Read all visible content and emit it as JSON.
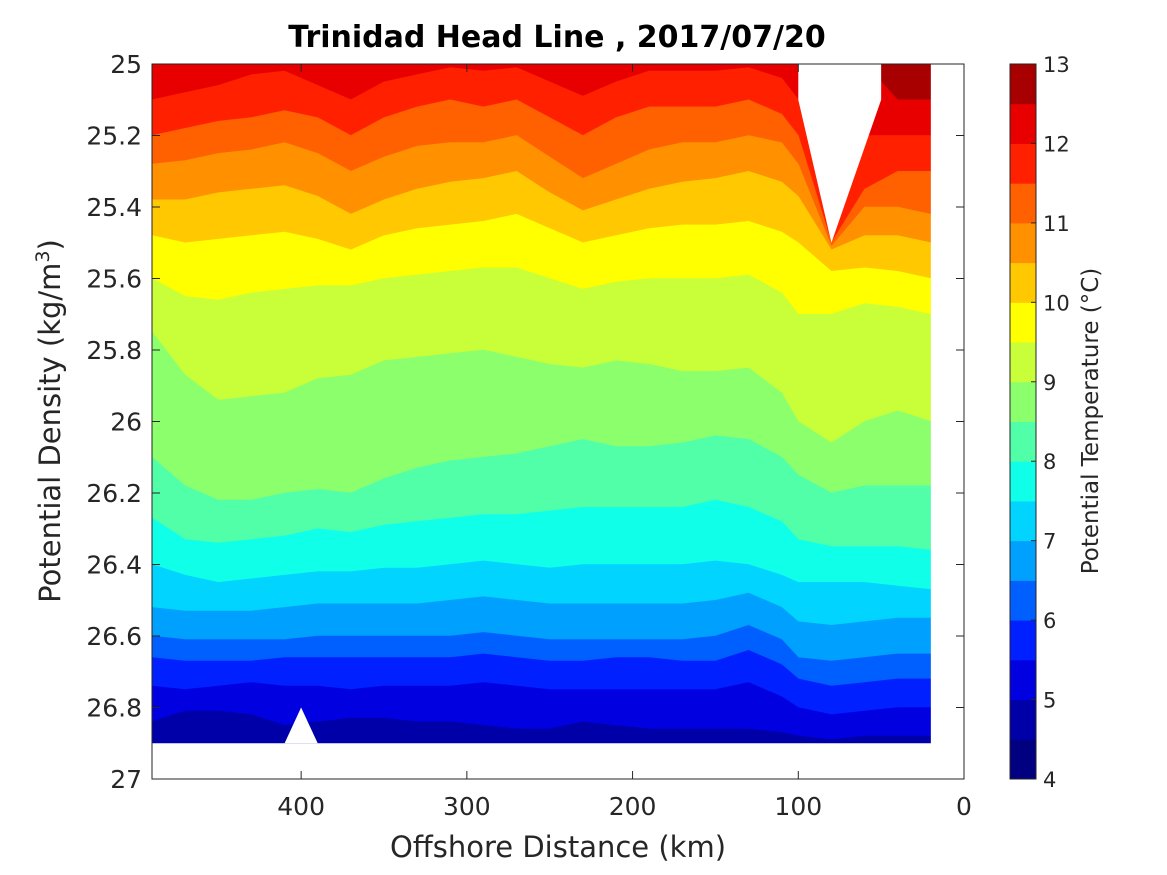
{
  "chart_data": {
    "type": "contour",
    "title": "Trinidad Head Line , 2017/07/20",
    "xlabel": "Offshore Distance (km)",
    "ylabel": "Potential Density (kg/m",
    "ylabel_sup": "3",
    "ylabel_close": ")",
    "colorbar_label": "Potential Temperature (°C)",
    "xlim": [
      490,
      0
    ],
    "ylim": [
      25,
      27
    ],
    "xticks": [
      {
        "value": 400,
        "label": "400"
      },
      {
        "value": 300,
        "label": "300"
      },
      {
        "value": 200,
        "label": "200"
      },
      {
        "value": 100,
        "label": "100"
      },
      {
        "value": 0,
        "label": "0"
      }
    ],
    "yticks": [
      {
        "value": 25,
        "label": "25"
      },
      {
        "value": 25.2,
        "label": "25.2"
      },
      {
        "value": 25.4,
        "label": "25.4"
      },
      {
        "value": 25.6,
        "label": "25.6"
      },
      {
        "value": 25.8,
        "label": "25.8"
      },
      {
        "value": 26,
        "label": "26"
      },
      {
        "value": 26.2,
        "label": "26.2"
      },
      {
        "value": 26.4,
        "label": "26.4"
      },
      {
        "value": 26.6,
        "label": "26.6"
      },
      {
        "value": 26.8,
        "label": "26.8"
      },
      {
        "value": 27,
        "label": "27"
      }
    ],
    "colorbar_range": [
      4,
      13
    ],
    "colorbar_ticks": [
      {
        "value": 4,
        "label": "4"
      },
      {
        "value": 5,
        "label": "5"
      },
      {
        "value": 6,
        "label": "6"
      },
      {
        "value": 7,
        "label": "7"
      },
      {
        "value": 8,
        "label": "8"
      },
      {
        "value": 9,
        "label": "9"
      },
      {
        "value": 10,
        "label": "10"
      },
      {
        "value": 11,
        "label": "11"
      },
      {
        "value": 12,
        "label": "12"
      },
      {
        "value": 13,
        "label": "13"
      }
    ],
    "levels": [
      {
        "range": [
          4.0,
          4.5
        ],
        "color": "#000080"
      },
      {
        "range": [
          4.5,
          5.0
        ],
        "color": "#0000a8"
      },
      {
        "range": [
          5.0,
          5.5
        ],
        "color": "#0000e0"
      },
      {
        "range": [
          5.5,
          6.0
        ],
        "color": "#0020ff"
      },
      {
        "range": [
          6.0,
          6.5
        ],
        "color": "#0060ff"
      },
      {
        "range": [
          6.5,
          7.0
        ],
        "color": "#00a0ff"
      },
      {
        "range": [
          7.0,
          7.5
        ],
        "color": "#00d4ff"
      },
      {
        "range": [
          7.5,
          8.0
        ],
        "color": "#10ffe8"
      },
      {
        "range": [
          8.0,
          8.5
        ],
        "color": "#50ffa8"
      },
      {
        "range": [
          8.5,
          9.0
        ],
        "color": "#8cff6c"
      },
      {
        "range": [
          9.0,
          9.5
        ],
        "color": "#c8ff38"
      },
      {
        "range": [
          9.5,
          10.0
        ],
        "color": "#ffff00"
      },
      {
        "range": [
          10.0,
          10.5
        ],
        "color": "#ffc800"
      },
      {
        "range": [
          10.5,
          11.0
        ],
        "color": "#ff9000"
      },
      {
        "range": [
          11.0,
          11.5
        ],
        "color": "#ff6000"
      },
      {
        "range": [
          11.5,
          12.0
        ],
        "color": "#ff2000"
      },
      {
        "range": [
          12.0,
          12.5
        ],
        "color": "#e80000"
      },
      {
        "range": [
          12.5,
          13.0
        ],
        "color": "#a80000"
      }
    ],
    "isopycnal_profiles": {
      "x": [
        490,
        470,
        450,
        430,
        410,
        390,
        370,
        350,
        330,
        310,
        290,
        270,
        250,
        230,
        210,
        190,
        170,
        150,
        130,
        110,
        100,
        80,
        60,
        40,
        20
      ],
      "boundaries": [
        {
          "temp": 12.5,
          "y": [
            25.0,
            25.0,
            25.0,
            25.0,
            25.0,
            25.0,
            25.0,
            25.0,
            25.0,
            25.0,
            25.0,
            25.0,
            25.0,
            25.0,
            25.0,
            25.0,
            25.0,
            25.0,
            25.0,
            25.0,
            25.0,
            25.0,
            25.0,
            25.1,
            25.1
          ]
        },
        {
          "temp": 12.0,
          "y": [
            25.1,
            25.08,
            25.06,
            25.03,
            25.02,
            25.06,
            25.1,
            25.05,
            25.03,
            25.01,
            25.02,
            25.01,
            25.05,
            25.09,
            25.05,
            25.02,
            25.02,
            25.02,
            25.01,
            25.04,
            25.1,
            25.5,
            25.2,
            25.2,
            25.2
          ]
        },
        {
          "temp": 11.5,
          "y": [
            25.2,
            25.18,
            25.16,
            25.15,
            25.13,
            25.15,
            25.2,
            25.15,
            25.12,
            25.1,
            25.12,
            25.1,
            25.15,
            25.2,
            25.15,
            25.12,
            25.12,
            25.12,
            25.1,
            25.14,
            25.2,
            25.5,
            25.35,
            25.3,
            25.3
          ]
        },
        {
          "temp": 11.0,
          "y": [
            25.28,
            25.27,
            25.25,
            25.24,
            25.22,
            25.25,
            25.3,
            25.26,
            25.23,
            25.22,
            25.22,
            25.2,
            25.26,
            25.32,
            25.28,
            25.24,
            25.22,
            25.22,
            25.2,
            25.22,
            25.28,
            25.51,
            25.4,
            25.4,
            25.42
          ]
        },
        {
          "temp": 10.5,
          "y": [
            25.38,
            25.38,
            25.36,
            25.35,
            25.34,
            25.37,
            25.42,
            25.38,
            25.35,
            25.33,
            25.32,
            25.3,
            25.36,
            25.41,
            25.38,
            25.35,
            25.33,
            25.32,
            25.3,
            25.33,
            25.37,
            25.52,
            25.48,
            25.48,
            25.5
          ]
        },
        {
          "temp": 10.0,
          "y": [
            25.48,
            25.5,
            25.49,
            25.48,
            25.47,
            25.49,
            25.52,
            25.48,
            25.46,
            25.45,
            25.44,
            25.42,
            25.46,
            25.5,
            25.48,
            25.46,
            25.45,
            25.45,
            25.44,
            25.47,
            25.5,
            25.58,
            25.57,
            25.58,
            25.6
          ]
        },
        {
          "temp": 9.5,
          "y": [
            25.6,
            25.65,
            25.66,
            25.64,
            25.63,
            25.62,
            25.62,
            25.6,
            25.59,
            25.58,
            25.57,
            25.57,
            25.6,
            25.63,
            25.61,
            25.6,
            25.6,
            25.6,
            25.59,
            25.64,
            25.7,
            25.7,
            25.67,
            25.68,
            25.7
          ]
        },
        {
          "temp": 9.0,
          "y": [
            25.75,
            25.87,
            25.94,
            25.93,
            25.92,
            25.88,
            25.87,
            25.83,
            25.82,
            25.81,
            25.8,
            25.82,
            25.84,
            25.85,
            25.83,
            25.84,
            25.86,
            25.86,
            25.85,
            25.92,
            26.0,
            26.06,
            26.0,
            25.97,
            26.0
          ]
        },
        {
          "temp": 8.5,
          "y": [
            26.1,
            26.18,
            26.22,
            26.22,
            26.2,
            26.19,
            26.2,
            26.16,
            26.13,
            26.11,
            26.1,
            26.09,
            26.07,
            26.05,
            26.07,
            26.07,
            26.06,
            26.04,
            26.05,
            26.1,
            26.15,
            26.2,
            26.18,
            26.18,
            26.18
          ]
        },
        {
          "temp": 8.0,
          "y": [
            26.27,
            26.33,
            26.34,
            26.33,
            26.32,
            26.3,
            26.31,
            26.29,
            26.28,
            26.27,
            26.26,
            26.26,
            26.25,
            26.24,
            26.24,
            26.24,
            26.24,
            26.22,
            26.24,
            26.28,
            26.33,
            26.35,
            26.35,
            26.35,
            26.36
          ]
        },
        {
          "temp": 7.5,
          "y": [
            26.4,
            26.43,
            26.45,
            26.44,
            26.43,
            26.42,
            26.42,
            26.41,
            26.41,
            26.4,
            26.39,
            26.4,
            26.41,
            26.4,
            26.4,
            26.4,
            26.4,
            26.39,
            26.4,
            26.43,
            26.45,
            26.45,
            26.45,
            26.46,
            26.47
          ]
        },
        {
          "temp": 7.0,
          "y": [
            26.52,
            26.53,
            26.53,
            26.53,
            26.52,
            26.51,
            26.51,
            26.51,
            26.51,
            26.5,
            26.49,
            26.5,
            26.51,
            26.51,
            26.51,
            26.51,
            26.51,
            26.5,
            26.48,
            26.52,
            26.56,
            26.57,
            26.56,
            26.55,
            26.55
          ]
        },
        {
          "temp": 6.5,
          "y": [
            26.6,
            26.61,
            26.61,
            26.61,
            26.61,
            26.6,
            26.6,
            26.6,
            26.6,
            26.6,
            26.59,
            26.6,
            26.61,
            26.61,
            26.61,
            26.61,
            26.61,
            26.6,
            26.57,
            26.61,
            26.66,
            26.67,
            26.66,
            26.65,
            26.65
          ]
        },
        {
          "temp": 6.0,
          "y": [
            26.66,
            26.67,
            26.67,
            26.67,
            26.66,
            26.66,
            26.66,
            26.66,
            26.66,
            26.66,
            26.65,
            26.66,
            26.67,
            26.67,
            26.66,
            26.66,
            26.67,
            26.67,
            26.64,
            26.68,
            26.72,
            26.74,
            26.73,
            26.72,
            26.72
          ]
        },
        {
          "temp": 5.5,
          "y": [
            26.74,
            26.75,
            26.74,
            26.73,
            26.74,
            26.74,
            26.75,
            26.74,
            26.74,
            26.74,
            26.73,
            26.74,
            26.75,
            26.75,
            26.75,
            26.75,
            26.75,
            26.75,
            26.73,
            26.77,
            26.8,
            26.82,
            26.81,
            26.8,
            26.8
          ]
        },
        {
          "temp": 5.0,
          "y": [
            26.84,
            26.81,
            26.81,
            26.82,
            26.85,
            26.84,
            26.83,
            26.83,
            26.84,
            26.84,
            26.85,
            26.86,
            26.86,
            26.84,
            26.85,
            26.86,
            26.86,
            26.86,
            26.86,
            26.87,
            26.88,
            26.89,
            26.88,
            26.88,
            26.88
          ]
        }
      ],
      "base_temp": 5.0,
      "base_density": 26.9,
      "data_gaps": [
        {
          "x": [
            410,
            400,
            390
          ],
          "y": [
            26.9,
            26.8,
            26.9
          ]
        }
      ]
    }
  }
}
